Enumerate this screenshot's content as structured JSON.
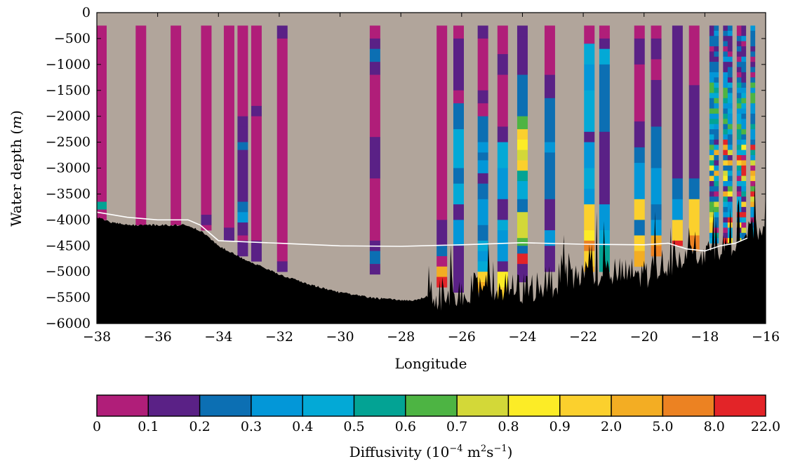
{
  "chart_data": {
    "type": "heatmap",
    "title": "",
    "xlabel": "Longitude",
    "ylabel_text": "Water depth (",
    "ylabel_unit": "m",
    "ylabel_close": ")",
    "xlim": [
      -38,
      -16
    ],
    "ylim": [
      -6000,
      0
    ],
    "xticks": [
      -38,
      -36,
      -34,
      -32,
      -30,
      -28,
      -26,
      -24,
      -22,
      -20,
      -18,
      -16
    ],
    "yticks": [
      0,
      -500,
      -1000,
      -1500,
      -2000,
      -2500,
      -3000,
      -3500,
      -4000,
      -4500,
      -5000,
      -5500,
      -6000
    ],
    "background_color": "#b1a59b",
    "seafloor_color": "#000000",
    "mean_depth_line_color": "#ffffff",
    "cell_depth_step": 100,
    "colorbar": {
      "label": "Diffusivity (10",
      "label_exp": "−4",
      "label_units": " m",
      "label_sq": "2",
      "label_s": "s",
      "label_sexp": "−1",
      "label_close": ")",
      "tick_labels": [
        "0",
        "0.1",
        "0.2",
        "0.3",
        "0.4",
        "0.5",
        "0.6",
        "0.7",
        "0.8",
        "0.9",
        "2.0",
        "5.0",
        "8.0",
        "22.0"
      ],
      "colors": [
        "#b01e79",
        "#5a2186",
        "#0c6fb3",
        "#0397d8",
        "#03a9d6",
        "#03a394",
        "#4db443",
        "#d3d838",
        "#fcec26",
        "#fbd02d",
        "#f3ad23",
        "#ec8222",
        "#e32428"
      ]
    },
    "profiles": [
      {
        "lon": -37.85,
        "bottom": -4000,
        "cells": [
          [
            -250,
            -3650,
            0
          ],
          [
            -3650,
            -3800,
            5
          ],
          [
            -3800,
            -4000,
            0
          ]
        ]
      },
      {
        "lon": -36.55,
        "bottom": -4100,
        "cells": [
          [
            -250,
            -4100,
            0
          ]
        ]
      },
      {
        "lon": -35.4,
        "bottom": -4100,
        "cells": [
          [
            -250,
            -4100,
            0
          ]
        ]
      },
      {
        "lon": -34.4,
        "bottom": -4200,
        "cells": [
          [
            -250,
            -3900,
            0
          ],
          [
            -3900,
            -4100,
            1
          ],
          [
            -4100,
            -4200,
            0
          ]
        ]
      },
      {
        "lon": -33.65,
        "bottom": -4400,
        "cells": [
          [
            -250,
            -4150,
            0
          ],
          [
            -4150,
            -4400,
            1
          ]
        ]
      },
      {
        "lon": -33.2,
        "bottom": -4700,
        "cells": [
          [
            -250,
            -2000,
            0
          ],
          [
            -2000,
            -2200,
            1
          ],
          [
            -2200,
            -2500,
            1
          ],
          [
            -2500,
            -2650,
            2
          ],
          [
            -2650,
            -3650,
            1
          ],
          [
            -3650,
            -3850,
            2
          ],
          [
            -3850,
            -4050,
            3
          ],
          [
            -4050,
            -4300,
            1
          ],
          [
            -4300,
            -4400,
            0
          ],
          [
            -4400,
            -4700,
            1
          ]
        ]
      },
      {
        "lon": -32.75,
        "bottom": -4800,
        "cells": [
          [
            -250,
            -1800,
            0
          ],
          [
            -1800,
            -2000,
            1
          ],
          [
            -2000,
            -4400,
            0
          ],
          [
            -4400,
            -4800,
            1
          ]
        ]
      },
      {
        "lon": -31.9,
        "bottom": -5000,
        "cells": [
          [
            -250,
            -500,
            1
          ],
          [
            -500,
            -4800,
            0
          ],
          [
            -4800,
            -5000,
            1
          ]
        ]
      },
      {
        "lon": -28.85,
        "bottom": -5000,
        "cells": [
          [
            -250,
            -500,
            0
          ],
          [
            -500,
            -700,
            1
          ],
          [
            -700,
            -950,
            2
          ],
          [
            -950,
            -1200,
            1
          ],
          [
            -1200,
            -2400,
            0
          ],
          [
            -2400,
            -3200,
            1
          ],
          [
            -3200,
            -4400,
            0
          ],
          [
            -4400,
            -4600,
            1
          ],
          [
            -4600,
            -4850,
            2
          ],
          [
            -4850,
            -5050,
            1
          ]
        ]
      },
      {
        "lon": -26.65,
        "bottom": -5300,
        "cells": [
          [
            -250,
            -4000,
            0
          ],
          [
            -4000,
            -4500,
            1
          ],
          [
            -4500,
            -4700,
            2
          ],
          [
            -4700,
            -4900,
            0
          ],
          [
            -4900,
            -5100,
            10
          ],
          [
            -5100,
            -5300,
            12
          ]
        ]
      },
      {
        "lon": -26.1,
        "bottom": -5400,
        "cells": [
          [
            -250,
            -500,
            0
          ],
          [
            -500,
            -1500,
            1
          ],
          [
            -1500,
            -1750,
            0
          ],
          [
            -1750,
            -2250,
            2
          ],
          [
            -2250,
            -3000,
            4
          ],
          [
            -3000,
            -3300,
            2
          ],
          [
            -3300,
            -3700,
            4
          ],
          [
            -3700,
            -4000,
            1
          ],
          [
            -4000,
            -4500,
            3
          ],
          [
            -4500,
            -5400,
            1
          ]
        ]
      },
      {
        "lon": -25.3,
        "bottom": -5400,
        "cells": [
          [
            -250,
            -500,
            1
          ],
          [
            -500,
            -1500,
            0
          ],
          [
            -1500,
            -1750,
            1
          ],
          [
            -1750,
            -2000,
            0
          ],
          [
            -2000,
            -2500,
            2
          ],
          [
            -2500,
            -2700,
            3
          ],
          [
            -2700,
            -2850,
            2
          ],
          [
            -2850,
            -3100,
            3
          ],
          [
            -3100,
            -3300,
            1
          ],
          [
            -3300,
            -3600,
            2
          ],
          [
            -3600,
            -4100,
            3
          ],
          [
            -4100,
            -4400,
            2
          ],
          [
            -4400,
            -4600,
            4
          ],
          [
            -4600,
            -4800,
            3
          ],
          [
            -4800,
            -5000,
            4
          ],
          [
            -5000,
            -5200,
            9
          ],
          [
            -5200,
            -5400,
            10
          ]
        ]
      },
      {
        "lon": -24.65,
        "bottom": -5600,
        "cells": [
          [
            -250,
            -800,
            0
          ],
          [
            -800,
            -1200,
            1
          ],
          [
            -1200,
            -2200,
            0
          ],
          [
            -2200,
            -2500,
            1
          ],
          [
            -2500,
            -3000,
            4
          ],
          [
            -3000,
            -3600,
            3
          ],
          [
            -3600,
            -4000,
            1
          ],
          [
            -4000,
            -4200,
            4
          ],
          [
            -4200,
            -4800,
            3
          ],
          [
            -4800,
            -5000,
            1
          ],
          [
            -5000,
            -5300,
            8
          ],
          [
            -5300,
            -5600,
            9
          ]
        ]
      },
      {
        "lon": -24.0,
        "bottom": -5200,
        "cells": [
          [
            -250,
            -450,
            1
          ],
          [
            -450,
            -1200,
            1
          ],
          [
            -1200,
            -2000,
            2
          ],
          [
            -2000,
            -2250,
            6
          ],
          [
            -2250,
            -2450,
            9
          ],
          [
            -2450,
            -2650,
            8
          ],
          [
            -2650,
            -2850,
            7
          ],
          [
            -2850,
            -3050,
            9
          ],
          [
            -3050,
            -3250,
            5
          ],
          [
            -3250,
            -3600,
            4
          ],
          [
            -3600,
            -3850,
            2
          ],
          [
            -3850,
            -4350,
            7
          ],
          [
            -4350,
            -4500,
            6
          ],
          [
            -4500,
            -4650,
            2
          ],
          [
            -4650,
            -4850,
            12
          ],
          [
            -4850,
            -5200,
            1
          ]
        ]
      },
      {
        "lon": -23.1,
        "bottom": -5000,
        "cells": [
          [
            -250,
            -1200,
            0
          ],
          [
            -1200,
            -1650,
            1
          ],
          [
            -1650,
            -2500,
            2
          ],
          [
            -2500,
            -2700,
            3
          ],
          [
            -2700,
            -3600,
            2
          ],
          [
            -3600,
            -4200,
            1
          ],
          [
            -4200,
            -4500,
            3
          ],
          [
            -4500,
            -5000,
            1
          ]
        ]
      },
      {
        "lon": -21.8,
        "bottom": -5000,
        "cells": [
          [
            -250,
            -600,
            0
          ],
          [
            -600,
            -1000,
            4
          ],
          [
            -1000,
            -1500,
            3
          ],
          [
            -1500,
            -2300,
            4
          ],
          [
            -2300,
            -2500,
            1
          ],
          [
            -2500,
            -3000,
            3
          ],
          [
            -3000,
            -3400,
            4
          ],
          [
            -3400,
            -3700,
            3
          ],
          [
            -3700,
            -4200,
            9
          ],
          [
            -4200,
            -4400,
            8
          ],
          [
            -4400,
            -4600,
            11
          ],
          [
            -4600,
            -4900,
            9
          ],
          [
            -4900,
            -5000,
            10
          ]
        ]
      },
      {
        "lon": -21.3,
        "bottom": -5000,
        "cells": [
          [
            -250,
            -500,
            0
          ],
          [
            -500,
            -700,
            1
          ],
          [
            -700,
            -1000,
            4
          ],
          [
            -1000,
            -2300,
            2
          ],
          [
            -2300,
            -3700,
            1
          ],
          [
            -3700,
            -4200,
            3
          ],
          [
            -4200,
            -4500,
            4
          ],
          [
            -4500,
            -5000,
            5
          ]
        ]
      },
      {
        "lon": -20.15,
        "bottom": -4900,
        "cells": [
          [
            -250,
            -500,
            0
          ],
          [
            -500,
            -1000,
            1
          ],
          [
            -1000,
            -2100,
            0
          ],
          [
            -2100,
            -2600,
            1
          ],
          [
            -2600,
            -2900,
            2
          ],
          [
            -2900,
            -3600,
            3
          ],
          [
            -3600,
            -4000,
            9
          ],
          [
            -4000,
            -4300,
            2
          ],
          [
            -4300,
            -4600,
            9
          ],
          [
            -4600,
            -4900,
            10
          ]
        ]
      },
      {
        "lon": -19.6,
        "bottom": -4700,
        "cells": [
          [
            -250,
            -500,
            0
          ],
          [
            -500,
            -900,
            1
          ],
          [
            -900,
            -1300,
            0
          ],
          [
            -1300,
            -2200,
            1
          ],
          [
            -2200,
            -3000,
            2
          ],
          [
            -3000,
            -3700,
            3
          ],
          [
            -3700,
            -4000,
            2
          ],
          [
            -4000,
            -4300,
            3
          ],
          [
            -4300,
            -4500,
            10
          ],
          [
            -4500,
            -4700,
            11
          ]
        ]
      },
      {
        "lon": -18.9,
        "bottom": -4500,
        "cells": [
          [
            -250,
            -3200,
            1
          ],
          [
            -3200,
            -3600,
            2
          ],
          [
            -3600,
            -4000,
            3
          ],
          [
            -4000,
            -4400,
            9
          ],
          [
            -4400,
            -4500,
            12
          ]
        ]
      },
      {
        "lon": -18.35,
        "bottom": -4600,
        "cells": [
          [
            -250,
            -1400,
            0
          ],
          [
            -1400,
            -3200,
            1
          ],
          [
            -3200,
            -3600,
            2
          ],
          [
            -3600,
            -4300,
            9
          ],
          [
            -4300,
            -4600,
            11
          ]
        ]
      }
    ],
    "dense_region": {
      "lon_start": -17.85,
      "lon_end": -16.35,
      "columns": 10,
      "top": -250,
      "bottom": -4400
    },
    "mean_depth_line": [
      [
        -38,
        -3850
      ],
      [
        -37,
        -3950
      ],
      [
        -36,
        -4000
      ],
      [
        -35,
        -4000
      ],
      [
        -34.6,
        -4100
      ],
      [
        -34,
        -4400
      ],
      [
        -32,
        -4450
      ],
      [
        -30,
        -4500
      ],
      [
        -28,
        -4510
      ],
      [
        -26,
        -4480
      ],
      [
        -24,
        -4440
      ],
      [
        -22,
        -4470
      ],
      [
        -20,
        -4480
      ],
      [
        -19.2,
        -4450
      ],
      [
        -18.6,
        -4560
      ],
      [
        -18,
        -4600
      ],
      [
        -17.5,
        -4500
      ],
      [
        -17,
        -4450
      ],
      [
        -16.6,
        -4350
      ]
    ]
  }
}
